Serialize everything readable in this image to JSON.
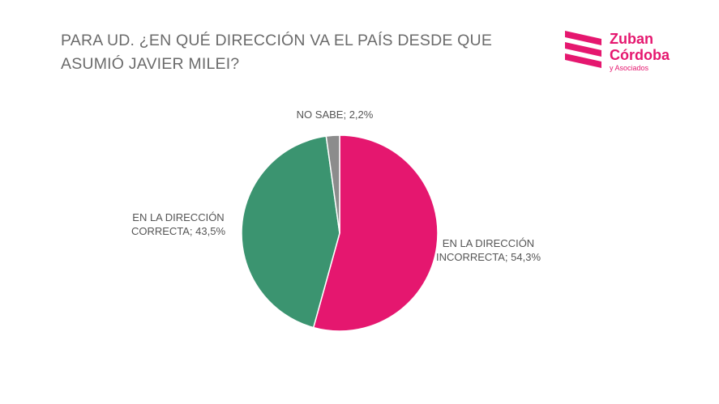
{
  "chart_data": {
    "type": "pie",
    "title": "PARA UD. ¿EN QUÉ DIRECCIÓN VA EL PAÍS DESDE QUE ASUMIÓ JAVIER MILEI?",
    "values": [
      54.3,
      43.5,
      2.2
    ],
    "value_labels": [
      "EN LA DIRECCIÓN INCORRECTA; 54,3%",
      "EN LA DIRECCIÓN CORRECTA; 43,5%",
      "NO SABE; 2,2%"
    ],
    "colors": [
      "#e5176f",
      "#3b9470",
      "#8c8c8c"
    ]
  },
  "logo": {
    "line1": "Zuban",
    "line2": "Córdoba",
    "line3": "y Asociados"
  }
}
